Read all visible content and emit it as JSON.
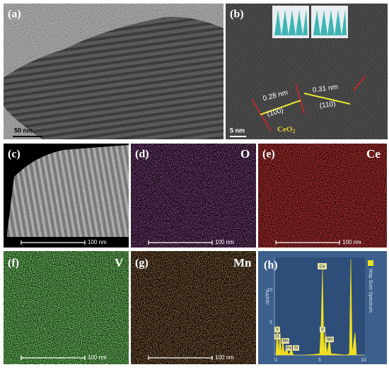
{
  "panels": [
    {
      "label": "(a)",
      "scale": "50 nm"
    },
    {
      "label": "(b)",
      "scale": "5 nm",
      "annotations": [
        "0.28 nm",
        "(100)",
        "0.31 nm",
        "(110)"
      ],
      "phase": "CeO",
      "phase_sub": "2"
    },
    {
      "label": "(c)",
      "scale": "100 nm"
    },
    {
      "label": "(d)",
      "element": "O",
      "scale": "100 nm"
    },
    {
      "label": "(e)",
      "element": "Ce",
      "scale": "100 nm"
    },
    {
      "label": "(f)",
      "element": "V",
      "scale": "100 nm"
    },
    {
      "label": "(g)",
      "element": "Mn",
      "scale": "100 nm"
    },
    {
      "label": "(h)",
      "legend": "Map Sum Spectrum",
      "y_label": "cps/eV",
      "x_ticks": [
        "0",
        "5",
        "10"
      ],
      "y_ticks": [
        "5",
        "10"
      ],
      "peaks": [
        "Ce",
        "V",
        "O",
        "Mn",
        "Fe",
        "Si",
        "V",
        "Mn"
      ]
    }
  ]
}
